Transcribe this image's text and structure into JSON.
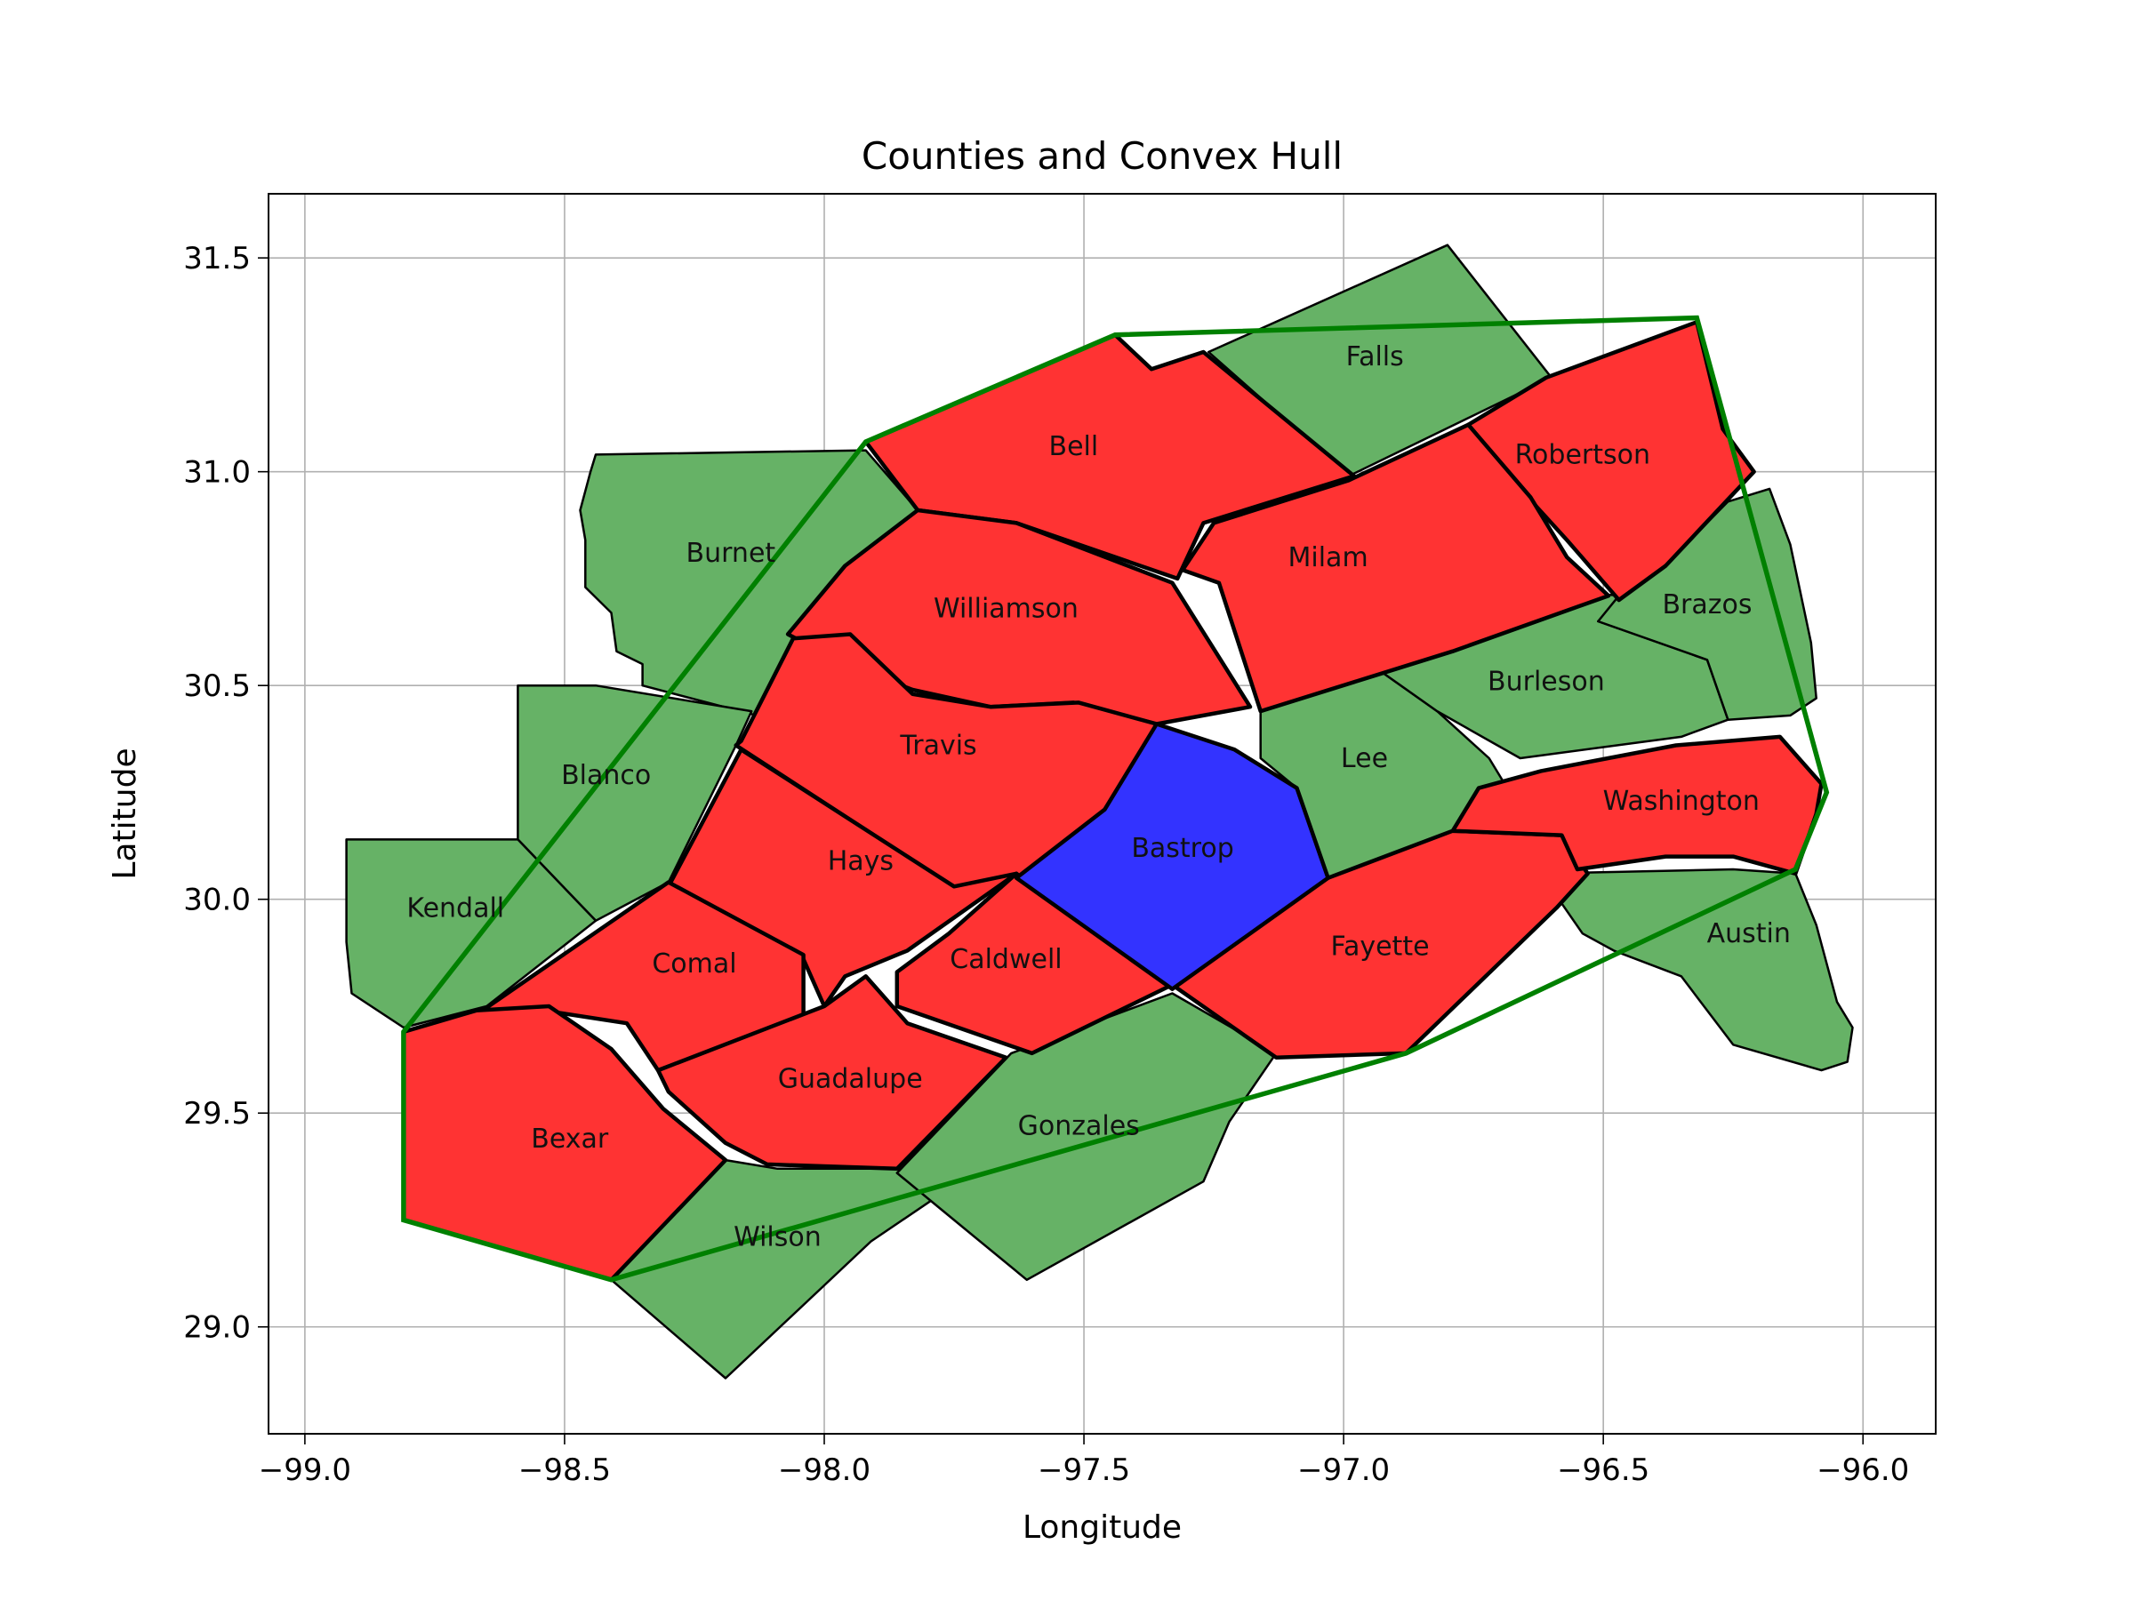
{
  "chart_data": {
    "type": "map",
    "title": "Counties and Convex Hull",
    "xlabel": "Longitude",
    "ylabel": "Latitude",
    "xlim": [
      -99.07,
      -95.86
    ],
    "ylim": [
      28.75,
      31.65
    ],
    "grid": true,
    "x_ticks": [
      -99.0,
      -98.5,
      -98.0,
      -97.5,
      -97.0,
      -96.5,
      -96.0
    ],
    "x_tick_labels": [
      "−99.0",
      "−98.5",
      "−98.0",
      "−97.5",
      "−97.0",
      "−96.5",
      "−96.0"
    ],
    "y_ticks": [
      29.0,
      29.5,
      30.0,
      30.5,
      31.0,
      31.5
    ],
    "y_tick_labels": [
      "29.0",
      "29.5",
      "30.0",
      "30.5",
      "31.0",
      "31.5"
    ],
    "colors": {
      "in_hull": "#ff3333",
      "outside_hull": "#66b266",
      "highlight": "#3333ff",
      "hull_line": "#008000"
    },
    "counties": [
      {
        "name": "Falls",
        "status": "outside_hull",
        "label_at": [
          -96.94,
          31.27
        ],
        "boundary": [
          [
            -97.26,
            31.28
          ],
          [
            -96.8,
            31.53
          ],
          [
            -96.6,
            31.22
          ],
          [
            -96.99,
            30.99
          ]
        ]
      },
      {
        "name": "Burnet",
        "status": "outside_hull",
        "label_at": [
          -98.18,
          30.81
        ],
        "boundary": [
          [
            -98.44,
            31.04
          ],
          [
            -97.92,
            31.05
          ],
          [
            -97.82,
            30.91
          ],
          [
            -97.96,
            30.76
          ],
          [
            -98.13,
            30.43
          ],
          [
            -98.35,
            30.5
          ],
          [
            -98.35,
            30.55
          ],
          [
            -98.4,
            30.58
          ],
          [
            -98.41,
            30.67
          ],
          [
            -98.46,
            30.73
          ],
          [
            -98.46,
            30.84
          ],
          [
            -98.47,
            30.91
          ],
          [
            -98.45,
            31.0
          ]
        ]
      },
      {
        "name": "Blanco",
        "status": "outside_hull",
        "label_at": [
          -98.42,
          30.29
        ],
        "boundary": [
          [
            -98.59,
            30.5
          ],
          [
            -98.44,
            30.5
          ],
          [
            -98.14,
            30.44
          ],
          [
            -98.17,
            30.36
          ],
          [
            -98.3,
            30.04
          ],
          [
            -98.44,
            29.95
          ],
          [
            -98.59,
            30.14
          ]
        ]
      },
      {
        "name": "Kendall",
        "status": "outside_hull",
        "label_at": [
          -98.71,
          29.98
        ],
        "boundary": [
          [
            -98.92,
            30.14
          ],
          [
            -98.59,
            30.14
          ],
          [
            -98.44,
            29.95
          ],
          [
            -98.65,
            29.75
          ],
          [
            -98.81,
            29.7
          ],
          [
            -98.91,
            29.78
          ],
          [
            -98.92,
            29.9
          ]
        ]
      },
      {
        "name": "Wilson",
        "status": "outside_hull",
        "label_at": [
          -98.09,
          29.21
        ],
        "boundary": [
          [
            -98.41,
            29.11
          ],
          [
            -98.19,
            29.39
          ],
          [
            -98.09,
            29.37
          ],
          [
            -97.86,
            29.37
          ],
          [
            -97.74,
            29.34
          ],
          [
            -97.91,
            29.2
          ],
          [
            -98.19,
            28.88
          ]
        ]
      },
      {
        "name": "Gonzales",
        "status": "outside_hull",
        "label_at": [
          -97.51,
          29.47
        ],
        "boundary": [
          [
            -97.86,
            29.36
          ],
          [
            -97.64,
            29.64
          ],
          [
            -97.33,
            29.78
          ],
          [
            -97.13,
            29.64
          ],
          [
            -97.22,
            29.48
          ],
          [
            -97.27,
            29.34
          ],
          [
            -97.61,
            29.11
          ],
          [
            -97.77,
            29.27
          ]
        ]
      },
      {
        "name": "Lee",
        "status": "outside_hull",
        "label_at": [
          -96.96,
          30.33
        ],
        "boundary": [
          [
            -97.16,
            30.45
          ],
          [
            -96.96,
            30.56
          ],
          [
            -96.82,
            30.44
          ],
          [
            -96.72,
            30.33
          ],
          [
            -96.66,
            30.21
          ],
          [
            -96.79,
            30.16
          ],
          [
            -96.95,
            30.06
          ],
          [
            -97.03,
            30.05
          ],
          [
            -97.09,
            30.26
          ],
          [
            -97.16,
            30.33
          ]
        ]
      },
      {
        "name": "Burleson",
        "status": "outside_hull",
        "label_at": [
          -96.61,
          30.51
        ],
        "boundary": [
          [
            -96.96,
            30.56
          ],
          [
            -96.59,
            30.72
          ],
          [
            -96.46,
            30.71
          ],
          [
            -96.51,
            30.65
          ],
          [
            -96.3,
            30.56
          ],
          [
            -96.26,
            30.42
          ],
          [
            -96.35,
            30.38
          ],
          [
            -96.66,
            30.33
          ],
          [
            -96.82,
            30.44
          ]
        ]
      },
      {
        "name": "Brazos",
        "status": "outside_hull",
        "label_at": [
          -96.3,
          30.69
        ],
        "boundary": [
          [
            -96.47,
            30.71
          ],
          [
            -96.39,
            30.77
          ],
          [
            -96.26,
            30.93
          ],
          [
            -96.18,
            30.96
          ],
          [
            -96.14,
            30.83
          ],
          [
            -96.1,
            30.6
          ],
          [
            -96.09,
            30.47
          ],
          [
            -96.14,
            30.43
          ],
          [
            -96.26,
            30.42
          ],
          [
            -96.3,
            30.56
          ],
          [
            -96.51,
            30.65
          ]
        ]
      },
      {
        "name": "Austin",
        "status": "outside_hull",
        "label_at": [
          -96.22,
          29.92
        ],
        "boundary": [
          [
            -96.62,
            30.06
          ],
          [
            -96.25,
            30.07
          ],
          [
            -96.13,
            30.06
          ],
          [
            -96.09,
            29.94
          ],
          [
            -96.05,
            29.76
          ],
          [
            -96.02,
            29.7
          ],
          [
            -96.03,
            29.62
          ],
          [
            -96.08,
            29.6
          ],
          [
            -96.25,
            29.66
          ],
          [
            -96.35,
            29.82
          ],
          [
            -96.48,
            29.88
          ],
          [
            -96.54,
            29.92
          ]
        ]
      },
      {
        "name": "Bell",
        "status": "in_hull",
        "label_at": [
          -97.52,
          31.06
        ],
        "boundary": [
          [
            -97.92,
            31.07
          ],
          [
            -97.44,
            31.32
          ],
          [
            -97.37,
            31.24
          ],
          [
            -97.27,
            31.28
          ],
          [
            -96.98,
            30.99
          ],
          [
            -97.27,
            30.88
          ],
          [
            -97.32,
            30.75
          ],
          [
            -97.63,
            30.88
          ],
          [
            -97.82,
            30.91
          ]
        ]
      },
      {
        "name": "Robertson",
        "status": "in_hull",
        "label_at": [
          -96.54,
          31.04
        ],
        "boundary": [
          [
            -96.61,
            31.22
          ],
          [
            -96.32,
            31.35
          ],
          [
            -96.27,
            31.1
          ],
          [
            -96.21,
            31.0
          ],
          [
            -96.38,
            30.78
          ],
          [
            -96.47,
            30.7
          ],
          [
            -96.57,
            30.84
          ],
          [
            -96.63,
            30.92
          ],
          [
            -96.76,
            31.11
          ]
        ]
      },
      {
        "name": "Milam",
        "status": "in_hull",
        "label_at": [
          -97.03,
          30.8
        ],
        "boundary": [
          [
            -96.76,
            31.11
          ],
          [
            -96.64,
            30.94
          ],
          [
            -96.57,
            30.8
          ],
          [
            -96.49,
            30.71
          ],
          [
            -96.79,
            30.58
          ],
          [
            -97.16,
            30.44
          ],
          [
            -97.24,
            30.74
          ],
          [
            -97.31,
            30.77
          ],
          [
            -97.25,
            30.88
          ],
          [
            -96.99,
            30.98
          ]
        ]
      },
      {
        "name": "Williamson",
        "status": "in_hull",
        "label_at": [
          -97.65,
          30.68
        ],
        "boundary": [
          [
            -97.82,
            30.91
          ],
          [
            -97.63,
            30.88
          ],
          [
            -97.33,
            30.74
          ],
          [
            -97.18,
            30.45
          ],
          [
            -97.36,
            30.41
          ],
          [
            -97.52,
            30.46
          ],
          [
            -97.68,
            30.45
          ],
          [
            -97.83,
            30.49
          ],
          [
            -97.96,
            30.55
          ],
          [
            -98.07,
            30.62
          ],
          [
            -97.96,
            30.78
          ]
        ]
      },
      {
        "name": "Travis",
        "status": "in_hull",
        "label_at": [
          -97.78,
          30.36
        ],
        "boundary": [
          [
            -98.16,
            30.37
          ],
          [
            -98.06,
            30.61
          ],
          [
            -97.95,
            30.62
          ],
          [
            -97.83,
            30.48
          ],
          [
            -97.68,
            30.45
          ],
          [
            -97.51,
            30.46
          ],
          [
            -97.36,
            30.41
          ],
          [
            -97.45,
            30.2
          ],
          [
            -97.64,
            30.04
          ],
          [
            -97.74,
            30.02
          ],
          [
            -98.17,
            30.36
          ]
        ]
      },
      {
        "name": "Hays",
        "status": "in_hull",
        "label_at": [
          -97.93,
          30.09
        ],
        "boundary": [
          [
            -98.16,
            30.35
          ],
          [
            -98.3,
            30.03
          ],
          [
            -98.04,
            29.86
          ],
          [
            -98.0,
            29.75
          ],
          [
            -97.96,
            29.82
          ],
          [
            -97.84,
            29.88
          ],
          [
            -97.63,
            30.06
          ],
          [
            -97.75,
            30.03
          ]
        ]
      },
      {
        "name": "Comal",
        "status": "in_hull",
        "label_at": [
          -98.25,
          29.85
        ],
        "boundary": [
          [
            -98.3,
            30.04
          ],
          [
            -98.67,
            29.73
          ],
          [
            -98.54,
            29.74
          ],
          [
            -98.38,
            29.71
          ],
          [
            -98.32,
            29.6
          ],
          [
            -98.1,
            29.7
          ],
          [
            -98.04,
            29.73
          ],
          [
            -98.04,
            29.87
          ]
        ]
      },
      {
        "name": "Bexar",
        "status": "in_hull",
        "label_at": [
          -98.49,
          29.44
        ],
        "boundary": [
          [
            -98.81,
            29.69
          ],
          [
            -98.81,
            29.25
          ],
          [
            -98.41,
            29.11
          ],
          [
            -98.19,
            29.39
          ],
          [
            -98.31,
            29.51
          ],
          [
            -98.41,
            29.65
          ],
          [
            -98.53,
            29.75
          ],
          [
            -98.67,
            29.74
          ]
        ]
      },
      {
        "name": "Guadalupe",
        "status": "in_hull",
        "label_at": [
          -97.95,
          29.58
        ],
        "boundary": [
          [
            -98.32,
            29.6
          ],
          [
            -98.0,
            29.75
          ],
          [
            -97.92,
            29.82
          ],
          [
            -97.84,
            29.71
          ],
          [
            -97.65,
            29.63
          ],
          [
            -97.86,
            29.37
          ],
          [
            -98.11,
            29.38
          ],
          [
            -98.19,
            29.43
          ],
          [
            -98.3,
            29.55
          ]
        ]
      },
      {
        "name": "Caldwell",
        "status": "in_hull",
        "label_at": [
          -97.65,
          29.86
        ],
        "boundary": [
          [
            -97.63,
            30.06
          ],
          [
            -97.33,
            29.8
          ],
          [
            -97.6,
            29.64
          ],
          [
            -97.86,
            29.75
          ],
          [
            -97.86,
            29.83
          ],
          [
            -97.76,
            29.92
          ]
        ]
      },
      {
        "name": "Bastrop",
        "status": "highlight",
        "label_at": [
          -97.31,
          30.12
        ],
        "boundary": [
          [
            -97.36,
            30.41
          ],
          [
            -97.21,
            30.35
          ],
          [
            -97.09,
            30.26
          ],
          [
            -97.03,
            30.05
          ],
          [
            -97.33,
            29.79
          ],
          [
            -97.63,
            30.05
          ],
          [
            -97.46,
            30.21
          ]
        ]
      },
      {
        "name": "Fayette",
        "status": "in_hull",
        "label_at": [
          -96.93,
          29.89
        ],
        "boundary": [
          [
            -97.03,
            30.05
          ],
          [
            -96.79,
            30.16
          ],
          [
            -96.58,
            30.15
          ],
          [
            -96.53,
            30.06
          ],
          [
            -96.59,
            29.98
          ],
          [
            -96.88,
            29.64
          ],
          [
            -97.13,
            29.63
          ],
          [
            -97.33,
            29.8
          ]
        ]
      },
      {
        "name": "Washington",
        "status": "in_hull",
        "label_at": [
          -96.35,
          30.23
        ],
        "boundary": [
          [
            -96.79,
            30.16
          ],
          [
            -96.74,
            30.26
          ],
          [
            -96.62,
            30.3
          ],
          [
            -96.36,
            30.36
          ],
          [
            -96.16,
            30.38
          ],
          [
            -96.08,
            30.27
          ],
          [
            -96.09,
            30.2
          ],
          [
            -96.13,
            30.06
          ],
          [
            -96.25,
            30.1
          ],
          [
            -96.38,
            30.1
          ],
          [
            -96.55,
            30.07
          ],
          [
            -96.58,
            30.15
          ]
        ]
      }
    ],
    "hull": [
      [
        -97.92,
        31.07
      ],
      [
        -97.44,
        31.32
      ],
      [
        -96.32,
        31.36
      ],
      [
        -96.07,
        30.25
      ],
      [
        -96.13,
        30.07
      ],
      [
        -96.88,
        29.64
      ],
      [
        -98.41,
        29.11
      ],
      [
        -98.81,
        29.25
      ],
      [
        -98.81,
        29.69
      ]
    ]
  }
}
